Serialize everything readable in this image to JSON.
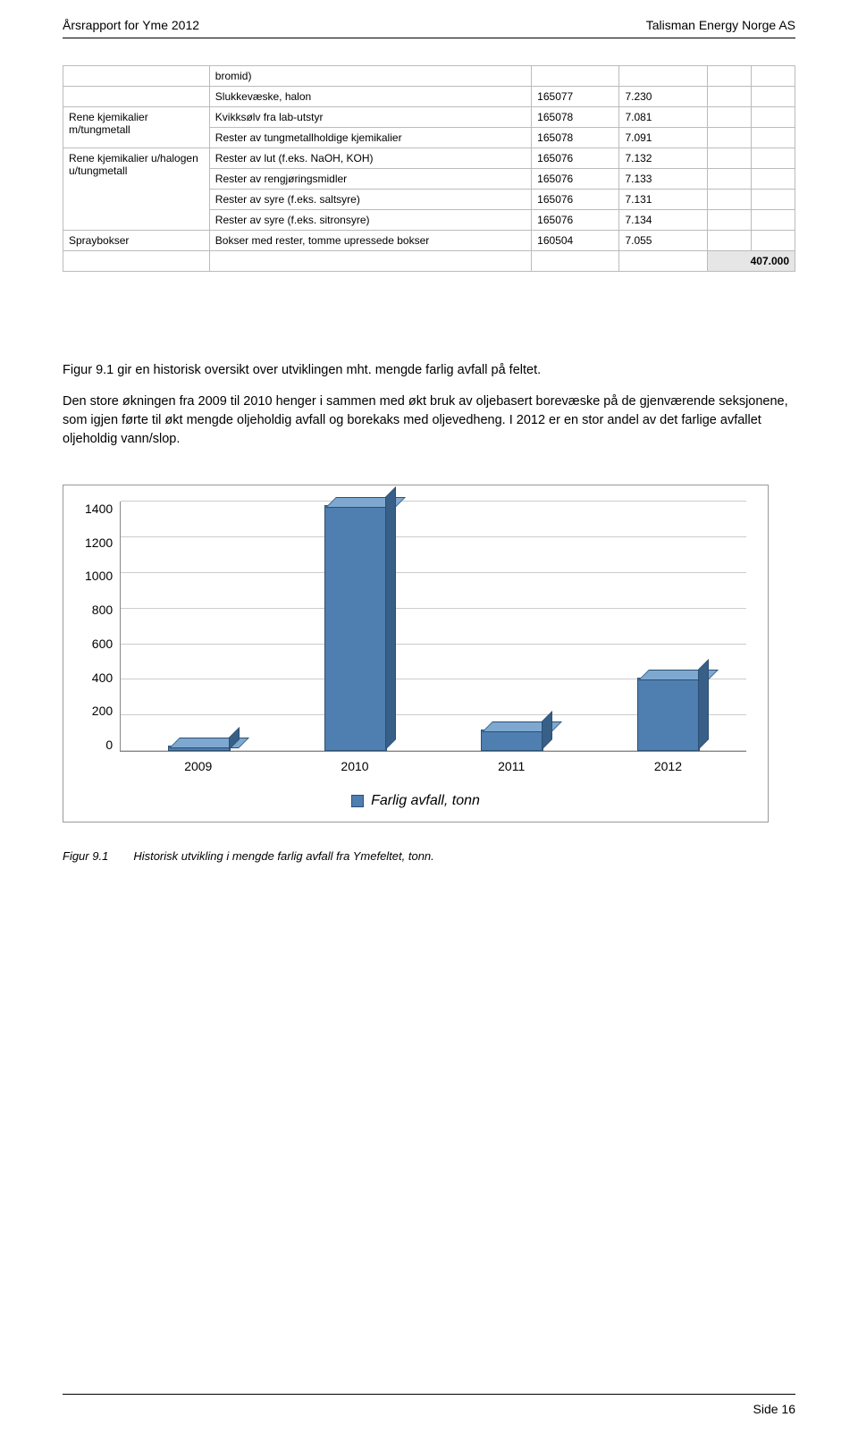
{
  "header": {
    "left": "Årsrapport for Yme 2012",
    "right": "Talisman Energy Norge AS"
  },
  "table": {
    "rows": [
      {
        "a": "",
        "b": "bromid)",
        "c": "",
        "d": "",
        "e": "",
        "f": "",
        "rowspanA": 0
      },
      {
        "a": "",
        "b": "Slukkevæske, halon",
        "c": "165077",
        "d": "7.230",
        "e": "",
        "f": ""
      },
      {
        "a": "Rene kjemikalier m/tungmetall",
        "b": "Kvikksølv fra lab-utstyr",
        "c": "165078",
        "d": "7.081",
        "e": "",
        "f": "",
        "rowspanA": 2
      },
      {
        "a": "",
        "b": "Rester av tungmetallholdige kjemikalier",
        "c": "165078",
        "d": "7.091",
        "e": "",
        "f": ""
      },
      {
        "a": "Rene kjemikalier u/halogen u/tungmetall",
        "b": "Rester av lut (f.eks. NaOH, KOH)",
        "c": "165076",
        "d": "7.132",
        "e": "",
        "f": "",
        "rowspanA": 4
      },
      {
        "a": "",
        "b": "Rester av rengjøringsmidler",
        "c": "165076",
        "d": "7.133",
        "e": "",
        "f": ""
      },
      {
        "a": "",
        "b": "Rester av syre (f.eks. saltsyre)",
        "c": "165076",
        "d": "7.131",
        "e": "",
        "f": ""
      },
      {
        "a": "",
        "b": "Rester av syre (f.eks. sitronsyre)",
        "c": "165076",
        "d": "7.134",
        "e": "",
        "f": ""
      },
      {
        "a": "Spraybokser",
        "b": "Bokser med rester, tomme upressede bokser",
        "c": "160504",
        "d": "7.055",
        "e": "",
        "f": "",
        "rowspanA": 1
      }
    ],
    "total": "407.000"
  },
  "paragraphs": {
    "p1": "Figur 9.1 gir en historisk oversikt over utviklingen mht. mengde farlig avfall på feltet.",
    "p2": "Den store økningen fra 2009 til 2010 henger i sammen med økt bruk av oljebasert borevæske på de gjenværende seksjonene, som igjen førte til økt mengde oljeholdig avfall og borekaks med oljevedheng. I 2012 er en stor andel av det farlige avfallet oljeholdig vann/slop."
  },
  "chart": {
    "type": "bar",
    "categories": [
      "2009",
      "2010",
      "2011",
      "2012"
    ],
    "values": [
      30,
      1380,
      120,
      410
    ],
    "ylim": [
      0,
      1400
    ],
    "ytick_step": 200,
    "yticks": [
      "1400",
      "1200",
      "1000",
      "800",
      "600",
      "400",
      "200",
      "0"
    ],
    "bar_color": "#4f7eb0",
    "bar_edge": "#2b4f72",
    "grid_color": "#cccccc",
    "background_color": "#ffffff",
    "legend_label": "Farlig avfall, tonn"
  },
  "figure_caption": {
    "label": "Figur 9.1",
    "text": "Historisk utvikling i mengde farlig avfall fra Ymefeltet, tonn."
  },
  "footer": {
    "page": "Side 16"
  }
}
